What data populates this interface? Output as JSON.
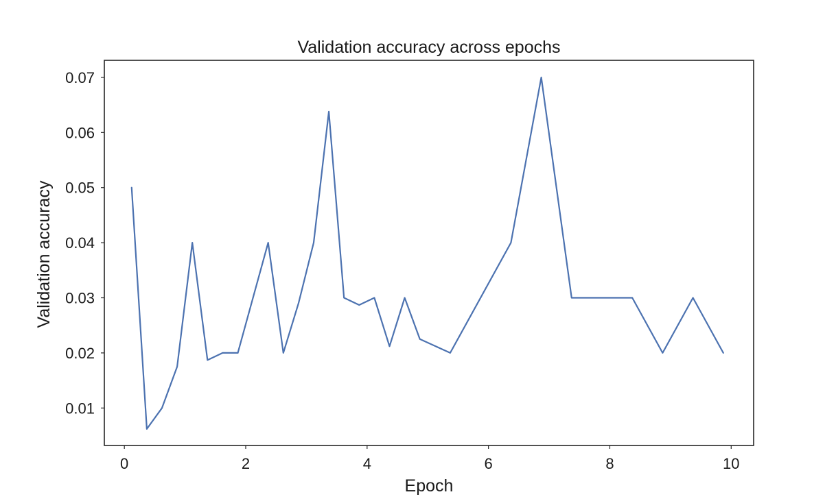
{
  "chart_data": {
    "type": "line",
    "title": "Validation accuracy across epochs",
    "xlabel": "Epoch",
    "ylabel": "Validation accuracy",
    "xlim": [
      -0.33,
      10.37
    ],
    "ylim": [
      0.0032,
      0.0731
    ],
    "xticks": [
      0,
      2,
      4,
      6,
      8,
      10
    ],
    "xtick_labels": [
      "0",
      "2",
      "4",
      "6",
      "8",
      "10"
    ],
    "yticks": [
      0.01,
      0.02,
      0.03,
      0.04,
      0.05,
      0.06,
      0.07
    ],
    "ytick_labels": [
      "0.01",
      "0.02",
      "0.03",
      "0.04",
      "0.05",
      "0.06",
      "0.07"
    ],
    "grid": false,
    "legend": "none",
    "series": [
      {
        "color": "#4c72b0",
        "x": [
          0.12,
          0.37,
          0.62,
          0.87,
          1.12,
          1.37,
          1.62,
          1.87,
          2.37,
          2.62,
          2.87,
          3.12,
          3.37,
          3.62,
          3.87,
          4.12,
          4.37,
          4.62,
          4.87,
          5.37,
          6.37,
          6.87,
          7.37,
          7.87,
          8.37,
          8.87,
          9.37,
          9.87
        ],
        "y": [
          0.05,
          0.0062,
          0.01,
          0.0175,
          0.04,
          0.0187,
          0.02,
          0.02,
          0.04,
          0.02,
          0.029,
          0.04,
          0.0638,
          0.03,
          0.0287,
          0.03,
          0.0212,
          0.03,
          0.0225,
          0.02,
          0.04,
          0.07,
          0.03,
          0.03,
          0.03,
          0.02,
          0.03,
          0.02
        ]
      }
    ]
  }
}
